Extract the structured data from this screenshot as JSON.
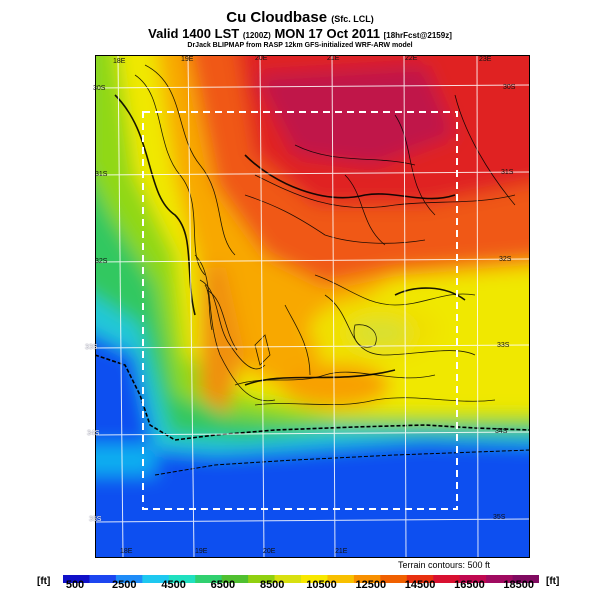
{
  "title": {
    "main": "Cu Cloudbase",
    "main_suffix": "(Sfc. LCL)",
    "valid_prefix": "Valid 1400 LST",
    "valid_code": "(1200Z)",
    "valid_date": "MON 17 Oct 2011",
    "valid_forecast": "[18hrFcst@2159z]",
    "model": "DrJack BLIPMAP from RASP 12km GFS-initialized WRF-ARW model"
  },
  "map": {
    "top_longitudes": [
      "18E",
      "19E",
      "20E",
      "21E",
      "22E",
      "23E"
    ],
    "bottom_longitudes": [
      "18E",
      "19E",
      "20E",
      "21E"
    ],
    "right_latitudes": [
      "30S",
      "31S",
      "32S",
      "33S",
      "34S",
      "35S"
    ],
    "left_latitudes": [
      "30S",
      "31S",
      "32S",
      "33S",
      "34S",
      "35S"
    ],
    "terrain_note": "Terrain contours: 500 ft"
  },
  "colorbar": {
    "unit_left": "[ft]",
    "unit_right": "[ft]",
    "labels": [
      "500",
      "2500",
      "4500",
      "6500",
      "8500",
      "10500",
      "12500",
      "14500",
      "16500",
      "18500"
    ],
    "colors": [
      "#1010c8",
      "#1c46f0",
      "#1f8cf8",
      "#1ec8f0",
      "#20e0c0",
      "#30d070",
      "#50c030",
      "#90d010",
      "#d8e010",
      "#f8e800",
      "#f8c000",
      "#f89000",
      "#f06000",
      "#e83010",
      "#d81030",
      "#c00850",
      "#a00a60",
      "#800a60"
    ]
  }
}
